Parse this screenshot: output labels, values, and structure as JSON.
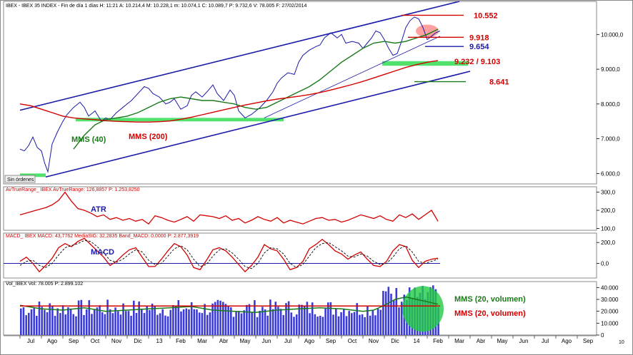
{
  "chart_data": [
    {
      "type": "line",
      "panel": "price",
      "header": "IBEX - IBEX 35 INDEX - Fin de día 1 días  H: 11:21  A: 10.214,4  M: 10.228,1  m: 10.074,1  C: 10.089,7  P: 9.732,6  V: 78.005  F: 27/02/2014",
      "ylim": [
        5700,
        10950
      ],
      "yticks": [
        "10.000,0",
        "9.000,0",
        "8.000,0",
        "7.000,0",
        "6.000,0"
      ],
      "ytick_values": [
        10000,
        9000,
        8000,
        7000,
        6000
      ],
      "x_range": [
        0,
        20.5
      ],
      "series": [
        {
          "color": "#1a1aa8",
          "x": [
            0,
            0.2,
            0.4,
            0.6,
            0.8,
            1.0,
            1.15,
            1.3,
            1.5,
            1.75,
            2.0,
            2.2,
            2.5,
            2.8,
            3.0,
            3.2,
            3.5,
            3.8,
            4.0,
            4.2,
            4.5,
            4.8,
            5.0,
            5.2,
            5.5,
            5.8,
            6.0,
            6.2,
            6.5,
            6.8,
            7.0,
            7.2,
            7.5,
            7.8,
            8.0,
            8.2,
            8.5,
            8.8,
            9.0,
            9.2,
            9.5,
            9.8,
            10.0,
            10.2,
            10.5,
            10.8,
            11.0,
            11.2,
            11.5,
            11.8,
            12.0,
            12.2,
            12.5,
            12.8,
            13.0,
            13.2,
            13.5,
            13.8,
            14.0,
            14.2,
            14.5,
            14.8,
            15.0,
            15.2,
            15.5,
            15.8,
            16.0,
            16.2,
            16.4,
            16.6,
            16.8,
            17.0,
            17.2,
            17.4,
            17.6,
            17.8,
            18.0,
            18.2,
            18.4,
            18.6,
            18.8,
            19.0,
            19.2,
            19.4,
            19.6
          ],
          "values": [
            6700,
            6650,
            6800,
            7050,
            6750,
            6650,
            6300,
            6050,
            6850,
            7200,
            7500,
            7700,
            7900,
            8050,
            7900,
            7650,
            7800,
            7500,
            7600,
            7550,
            7750,
            7900,
            8000,
            8100,
            8300,
            8500,
            8450,
            8300,
            8200,
            8000,
            8050,
            8150,
            7850,
            7950,
            8250,
            8350,
            8200,
            8400,
            8550,
            8300,
            8100,
            8400,
            8250,
            7800,
            7600,
            7700,
            7800,
            7900,
            8100,
            8350,
            8600,
            8750,
            8900,
            8850,
            9200,
            9400,
            9550,
            9650,
            9700,
            9900,
            10050,
            9900,
            10000,
            9750,
            9800,
            9750,
            9600,
            9750,
            9900,
            10100,
            10050,
            9850,
            9600,
            9400,
            9450,
            9800,
            10200,
            10400,
            10500,
            10450,
            10200,
            9850,
            9950,
            10050,
            10100
          ]
        },
        {
          "name": "MMS (40)",
          "color": "#1a7a1a",
          "x": [
            2.5,
            3.0,
            3.5,
            4.0,
            4.5,
            5.0,
            5.5,
            6.0,
            6.5,
            7.0,
            7.5,
            8.0,
            8.5,
            9.0,
            9.5,
            10.0,
            10.5,
            11.0,
            11.5,
            12.0,
            12.5,
            13.0,
            13.5,
            14.0,
            14.5,
            15.0,
            15.5,
            16.0,
            16.5,
            17.0,
            17.5,
            18.0,
            18.5,
            19.0,
            19.5
          ],
          "values": [
            6700,
            7100,
            7400,
            7550,
            7600,
            7650,
            7750,
            7900,
            8050,
            8150,
            8200,
            8150,
            8100,
            8100,
            8050,
            8000,
            7900,
            7850,
            7900,
            8050,
            8200,
            8350,
            8500,
            8700,
            8950,
            9200,
            9400,
            9600,
            9750,
            9800,
            9750,
            9800,
            9900,
            10000,
            10150
          ]
        },
        {
          "name": "MMS (200)",
          "color": "#d40000",
          "x": [
            0,
            0.5,
            1.0,
            1.5,
            2.0,
            2.5,
            3.0,
            3.5,
            4.0,
            4.5,
            5.0,
            5.5,
            6.0,
            6.5,
            7.0,
            7.5,
            8.0,
            8.5,
            9.0,
            9.5,
            10.0,
            10.5,
            11.0,
            11.5,
            12.0,
            12.5,
            13.0,
            13.5,
            14.0,
            14.5,
            15.0,
            15.5,
            16.0,
            16.5,
            17.0,
            17.5,
            18.0,
            18.5,
            19.0,
            19.5
          ],
          "values": [
            8000,
            7950,
            7850,
            7750,
            7650,
            7600,
            7570,
            7550,
            7520,
            7500,
            7490,
            7480,
            7480,
            7490,
            7510,
            7560,
            7620,
            7690,
            7760,
            7830,
            7900,
            7970,
            8030,
            8090,
            8140,
            8180,
            8220,
            8270,
            8330,
            8400,
            8480,
            8560,
            8650,
            8750,
            8850,
            8950,
            9050,
            9130,
            9200,
            9250
          ]
        }
      ],
      "levels": [
        {
          "label": "10.552",
          "value": 10552,
          "color": "#d40000"
        },
        {
          "label": "9.918",
          "value": 9918,
          "color": "#d40000"
        },
        {
          "label": "9.654",
          "value": 9654,
          "color": "#1a1aa8"
        },
        {
          "label": "9.232 / 9.103",
          "value": 9232,
          "color": "#d40000"
        },
        {
          "label": "8.641",
          "value": 8641,
          "color": "#d40000"
        }
      ],
      "channel_upper": [
        [
          0,
          7820
        ],
        [
          20.5,
          10950
        ]
      ],
      "channel_lower": [
        [
          1.2,
          5900
        ],
        [
          21.0,
          8940
        ]
      ],
      "trend_line": [
        [
          11.4,
          7600
        ],
        [
          19.6,
          9950
        ]
      ],
      "annotations": [
        {
          "text": "MMS (40)",
          "color": "#1a7a1a"
        },
        {
          "text": "MMS (200)",
          "color": "#d40000"
        },
        {
          "text": "Sin órdenes",
          "color": "#000000"
        }
      ]
    },
    {
      "type": "line",
      "panel": "atr",
      "header": "AvTrueRange_ IBEX  AvTrueRange: 126,8857  P: 1.253,8250",
      "label": "ATR",
      "ylim": [
        90,
        330
      ],
      "yticks": [
        "300,0",
        "200,0",
        "100,0"
      ],
      "ytick_values": [
        300,
        200,
        100
      ],
      "x_range": [
        0,
        20.5
      ],
      "series": [
        {
          "color": "#d40000",
          "x": [
            0,
            0.3,
            0.6,
            0.9,
            1.2,
            1.5,
            1.8,
            2.1,
            2.4,
            2.7,
            3.0,
            3.3,
            3.6,
            3.9,
            4.2,
            4.5,
            4.8,
            5.1,
            5.4,
            5.7,
            6.0,
            6.3,
            6.6,
            6.9,
            7.2,
            7.5,
            7.8,
            8.1,
            8.4,
            8.7,
            9.0,
            9.3,
            9.6,
            9.9,
            10.2,
            10.5,
            10.8,
            11.1,
            11.4,
            11.7,
            12.0,
            12.3,
            12.6,
            12.9,
            13.2,
            13.5,
            13.8,
            14.1,
            14.4,
            14.7,
            15.0,
            15.3,
            15.6,
            15.9,
            16.2,
            16.5,
            16.8,
            17.1,
            17.4,
            17.7,
            18.0,
            18.3,
            18.6,
            18.9,
            19.2,
            19.5
          ],
          "values": [
            175,
            185,
            195,
            205,
            215,
            230,
            255,
            300,
            250,
            210,
            200,
            185,
            165,
            175,
            150,
            160,
            145,
            155,
            140,
            150,
            125,
            170,
            160,
            145,
            135,
            150,
            165,
            140,
            175,
            170,
            165,
            155,
            170,
            145,
            155,
            130,
            145,
            165,
            150,
            140,
            160,
            130,
            145,
            135,
            125,
            140,
            155,
            160,
            145,
            150,
            135,
            145,
            160,
            175,
            165,
            155,
            170,
            150,
            140,
            175,
            160,
            180,
            150,
            175,
            200,
            140
          ]
        }
      ]
    },
    {
      "type": "line",
      "panel": "macd",
      "header": "MACD_ IBEX  MACD: 43,7762  MediaSIG: 32,2835  Band_MACD: 0,0000  P: 2.877,3919",
      "label": "MACD",
      "ylim": [
        -140,
        290
      ],
      "yticks": [
        "200,0",
        "0,0"
      ],
      "ytick_values": [
        200,
        0
      ],
      "x_range": [
        0,
        20.5
      ],
      "zero_line": 0,
      "series": [
        {
          "name": "MACD",
          "color": "#d40000",
          "x": [
            0,
            0.3,
            0.6,
            0.9,
            1.2,
            1.5,
            1.8,
            2.1,
            2.4,
            2.7,
            3.0,
            3.3,
            3.6,
            3.9,
            4.2,
            4.5,
            4.8,
            5.1,
            5.4,
            5.7,
            6.0,
            6.3,
            6.6,
            6.9,
            7.2,
            7.5,
            7.8,
            8.1,
            8.4,
            8.7,
            9.0,
            9.3,
            9.6,
            9.9,
            10.2,
            10.5,
            10.8,
            11.1,
            11.4,
            11.7,
            12.0,
            12.3,
            12.6,
            12.9,
            13.2,
            13.5,
            13.8,
            14.1,
            14.4,
            14.7,
            15.0,
            15.3,
            15.6,
            15.9,
            16.2,
            16.5,
            16.8,
            17.1,
            17.4,
            17.7,
            18.0,
            18.3,
            18.6,
            18.9,
            19.2,
            19.5
          ],
          "values": [
            20,
            60,
            0,
            -80,
            -20,
            50,
            150,
            190,
            160,
            210,
            240,
            180,
            120,
            60,
            -20,
            20,
            80,
            130,
            150,
            60,
            -30,
            -30,
            40,
            120,
            190,
            160,
            80,
            -40,
            -60,
            30,
            130,
            150,
            120,
            60,
            -10,
            -80,
            -20,
            60,
            180,
            140,
            120,
            40,
            -60,
            -40,
            20,
            140,
            180,
            230,
            180,
            120,
            90,
            40,
            80,
            110,
            40,
            -20,
            -30,
            20,
            120,
            180,
            160,
            30,
            -40,
            20,
            40,
            50
          ]
        },
        {
          "name": "MediaSIG",
          "color": "#000000",
          "dashed": true,
          "x": [
            0,
            0.3,
            0.6,
            0.9,
            1.2,
            1.5,
            1.8,
            2.1,
            2.4,
            2.7,
            3.0,
            3.3,
            3.6,
            3.9,
            4.2,
            4.5,
            4.8,
            5.1,
            5.4,
            5.7,
            6.0,
            6.3,
            6.6,
            6.9,
            7.2,
            7.5,
            7.8,
            8.1,
            8.4,
            8.7,
            9.0,
            9.3,
            9.6,
            9.9,
            10.2,
            10.5,
            10.8,
            11.1,
            11.4,
            11.7,
            12.0,
            12.3,
            12.6,
            12.9,
            13.2,
            13.5,
            13.8,
            14.1,
            14.4,
            14.7,
            15.0,
            15.3,
            15.6,
            15.9,
            16.2,
            16.5,
            16.8,
            17.1,
            17.4,
            17.7,
            18.0,
            18.3,
            18.6,
            18.9,
            19.2,
            19.5
          ],
          "values": [
            -20,
            20,
            30,
            -20,
            -40,
            0,
            80,
            150,
            170,
            190,
            220,
            210,
            160,
            100,
            30,
            10,
            40,
            90,
            130,
            110,
            30,
            -10,
            0,
            70,
            140,
            170,
            130,
            40,
            -30,
            -10,
            70,
            130,
            140,
            100,
            40,
            -30,
            -50,
            0,
            100,
            150,
            140,
            90,
            0,
            -40,
            -10,
            70,
            150,
            190,
            200,
            160,
            120,
            70,
            60,
            90,
            70,
            20,
            -10,
            0,
            60,
            140,
            170,
            110,
            20,
            0,
            20,
            40
          ]
        }
      ]
    },
    {
      "type": "bar",
      "panel": "volume",
      "header": "Vol_IBEX  Vol: 78.005  P: 2.899.102",
      "ylim": [
        0,
        45000
      ],
      "yticks": [
        "40.000",
        "30.000",
        "20.000",
        "10.000",
        "0"
      ],
      "ytick_values": [
        40000,
        30000,
        20000,
        10000,
        0
      ],
      "x_range": [
        0,
        20.5
      ],
      "bar_count": 160,
      "volume_seed": 7,
      "series": [
        {
          "name": "MMS (20, volumen)",
          "color": "#1a7a1a",
          "x": [
            0,
            1,
            2,
            3,
            4,
            5,
            6,
            7,
            8,
            9,
            10,
            11,
            12,
            13,
            14,
            15,
            16,
            16.5,
            17,
            17.5,
            18,
            18.5,
            19,
            19.5
          ],
          "values": [
            25000,
            22000,
            21000,
            23000,
            20000,
            21000,
            22000,
            23000,
            24000,
            21000,
            20000,
            19000,
            21000,
            22000,
            23000,
            22000,
            20000,
            21000,
            25000,
            30000,
            32000,
            30000,
            28000,
            26000
          ]
        },
        {
          "name": "MMS (20, volumen)",
          "color": "#d40000",
          "x": [
            0,
            19.6
          ],
          "values": [
            24500,
            24500
          ]
        }
      ],
      "annotations": [
        {
          "text": "MMS (20, volumen)",
          "color": "#1a7a1a"
        },
        {
          "text": "MMS (20, volumen)",
          "color": "#d40000"
        }
      ]
    }
  ],
  "months": [
    "Jul",
    "Ago",
    "Sep",
    "Oct",
    "Nov",
    "Dic",
    "13",
    "Feb",
    "Mar",
    "Abr",
    "May",
    "Jun",
    "Jul",
    "Ago",
    "Sep",
    "Oct",
    "Nov",
    "Dic",
    "14",
    "Feb",
    "Mar",
    "Abr",
    "May",
    "Jun",
    "Jul",
    "Ago",
    "Sep"
  ],
  "corner_label": "10",
  "colors": {
    "blue": "#1a1aa8",
    "green": "#1a7a1a",
    "red": "#d40000",
    "zone": "#33dd55",
    "highlight": "#ff8a8a"
  }
}
